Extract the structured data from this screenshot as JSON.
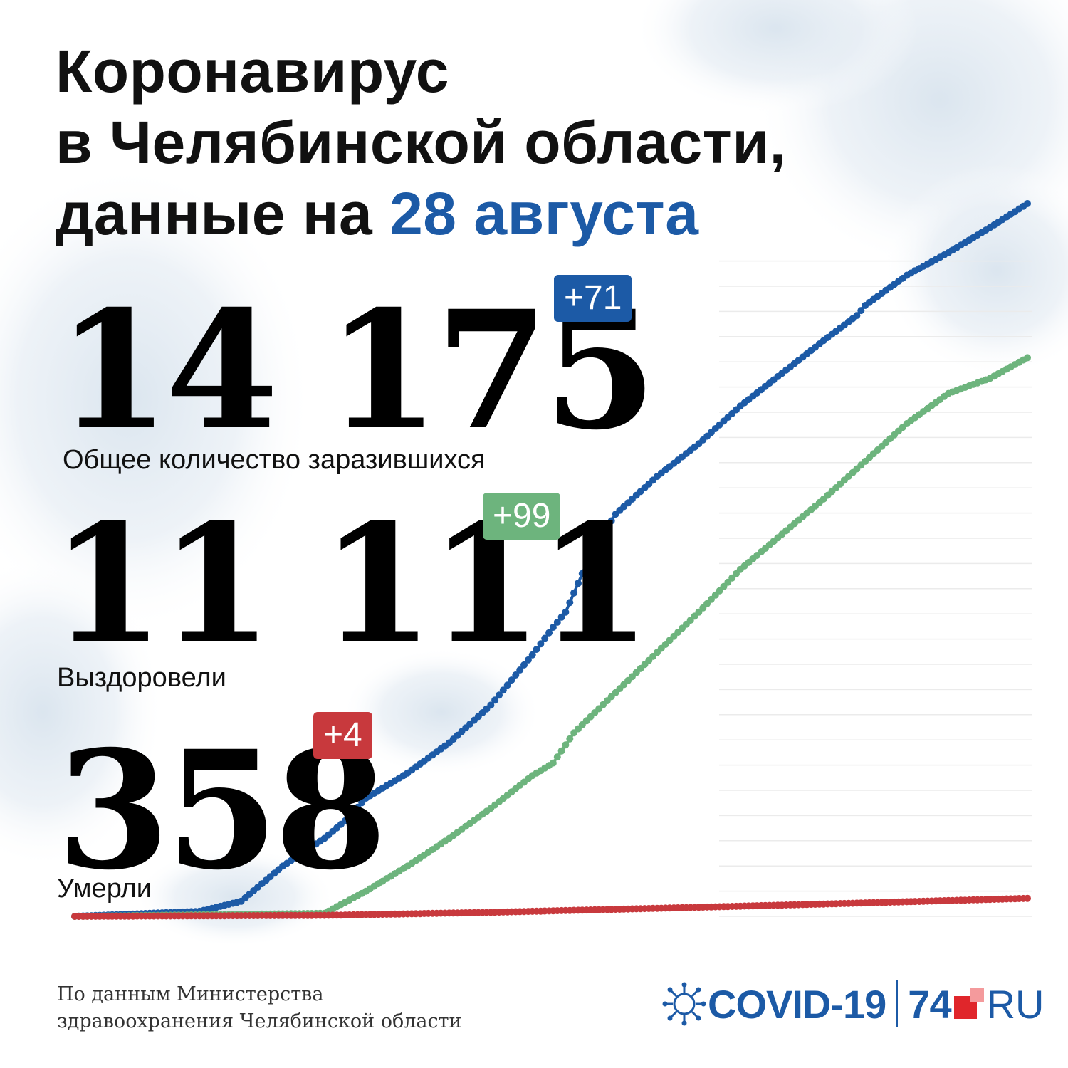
{
  "title": {
    "line1": "Коронавирус",
    "line2": "в Челябинской области,",
    "line3_prefix": "данные на ",
    "date": "28 августа"
  },
  "stats": {
    "total": {
      "value": "14 175",
      "delta": "+71",
      "label": "Общее количество заразившихся"
    },
    "recovered": {
      "value": "11 111",
      "delta": "+99",
      "label": "Выздоровели"
    },
    "deaths": {
      "value": "358",
      "delta": "+4",
      "label": "Умерли"
    }
  },
  "source": {
    "line1": "По данным Министерства",
    "line2": "здравоохранения Челябинской области"
  },
  "logo": {
    "covid": "COVID-19",
    "num": "74",
    "ru": "RU"
  },
  "colors": {
    "total": "#1c5aa6",
    "recovered": "#6db47d",
    "deaths": "#c8393d",
    "title_accent": "#1c5aa6",
    "gridline": "#ebebeb"
  },
  "icons": [
    "virus-icon",
    "logo-squares-icon"
  ],
  "chart_data": {
    "type": "line",
    "title": "",
    "xlabel": "",
    "ylabel": "",
    "ylim": [
      0,
      14175
    ],
    "grid": true,
    "legend": "none",
    "series": [
      {
        "key": "total",
        "color": "#1c5aa6",
        "x": [
          0,
          30,
          40,
          50,
          60,
          65,
          70,
          80,
          90,
          100,
          110,
          115,
          118,
          124,
          130,
          140,
          150,
          160,
          170,
          180,
          188,
          190,
          200,
          210,
          220,
          229
        ],
        "y": [
          0,
          100,
          300,
          1000,
          1550,
          1900,
          2350,
          2850,
          3450,
          4200,
          5200,
          5750,
          6050,
          7200,
          8000,
          8750,
          9400,
          10150,
          10800,
          11450,
          11950,
          12150,
          12750,
          13200,
          13700,
          14175
        ]
      },
      {
        "key": "recovered",
        "color": "#6db47d",
        "x": [
          0,
          60,
          70,
          80,
          90,
          100,
          110,
          115,
          120,
          130,
          140,
          150,
          160,
          170,
          180,
          190,
          200,
          210,
          220,
          229
        ],
        "y": [
          0,
          60,
          500,
          1000,
          1550,
          2150,
          2800,
          3050,
          3650,
          4450,
          5250,
          6050,
          6900,
          7600,
          8300,
          9050,
          9800,
          10400,
          10700,
          11111
        ]
      },
      {
        "key": "deaths",
        "color": "#c8393d",
        "x": [
          0,
          60,
          100,
          140,
          180,
          229
        ],
        "y": [
          0,
          20,
          80,
          160,
          245,
          358
        ]
      }
    ]
  }
}
